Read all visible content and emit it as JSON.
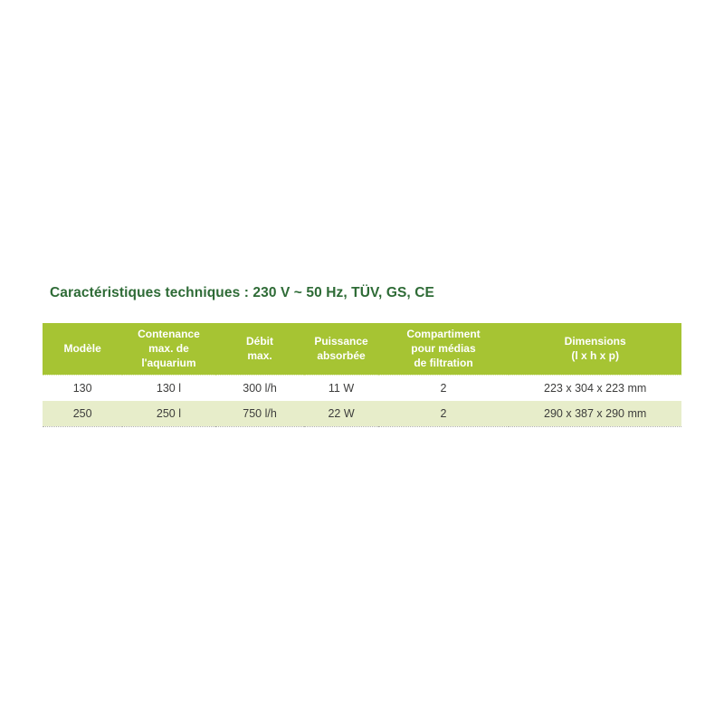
{
  "section": {
    "title": "Caractéristiques techniques : 230 V ~ 50 Hz, TÜV, GS, CE"
  },
  "table": {
    "headers": [
      "Modèle",
      "Contenance\nmax. de\nl'aquarium",
      "Débit\nmax.",
      "Puissance\nabsorbée",
      "Compartiment\npour médias\nde filtration",
      "Dimensions\n(l x h x p)"
    ],
    "rows": [
      {
        "cells": [
          "130",
          "130 l",
          "300 l/h",
          "11 W",
          "2",
          "223 x 304 x 223 mm"
        ]
      },
      {
        "cells": [
          "250",
          "250 l",
          "750 l/h",
          "22 W",
          "2",
          "290 x 387 x 290 mm"
        ]
      }
    ]
  },
  "colors": {
    "header-bg": "#a6c433",
    "header-text": "#ffffff",
    "row-alt-bg": "#e7edca",
    "title-text": "#2e6b36",
    "body-text": "#3d3d3c",
    "table-border-dotted": "#b1b1b1"
  }
}
